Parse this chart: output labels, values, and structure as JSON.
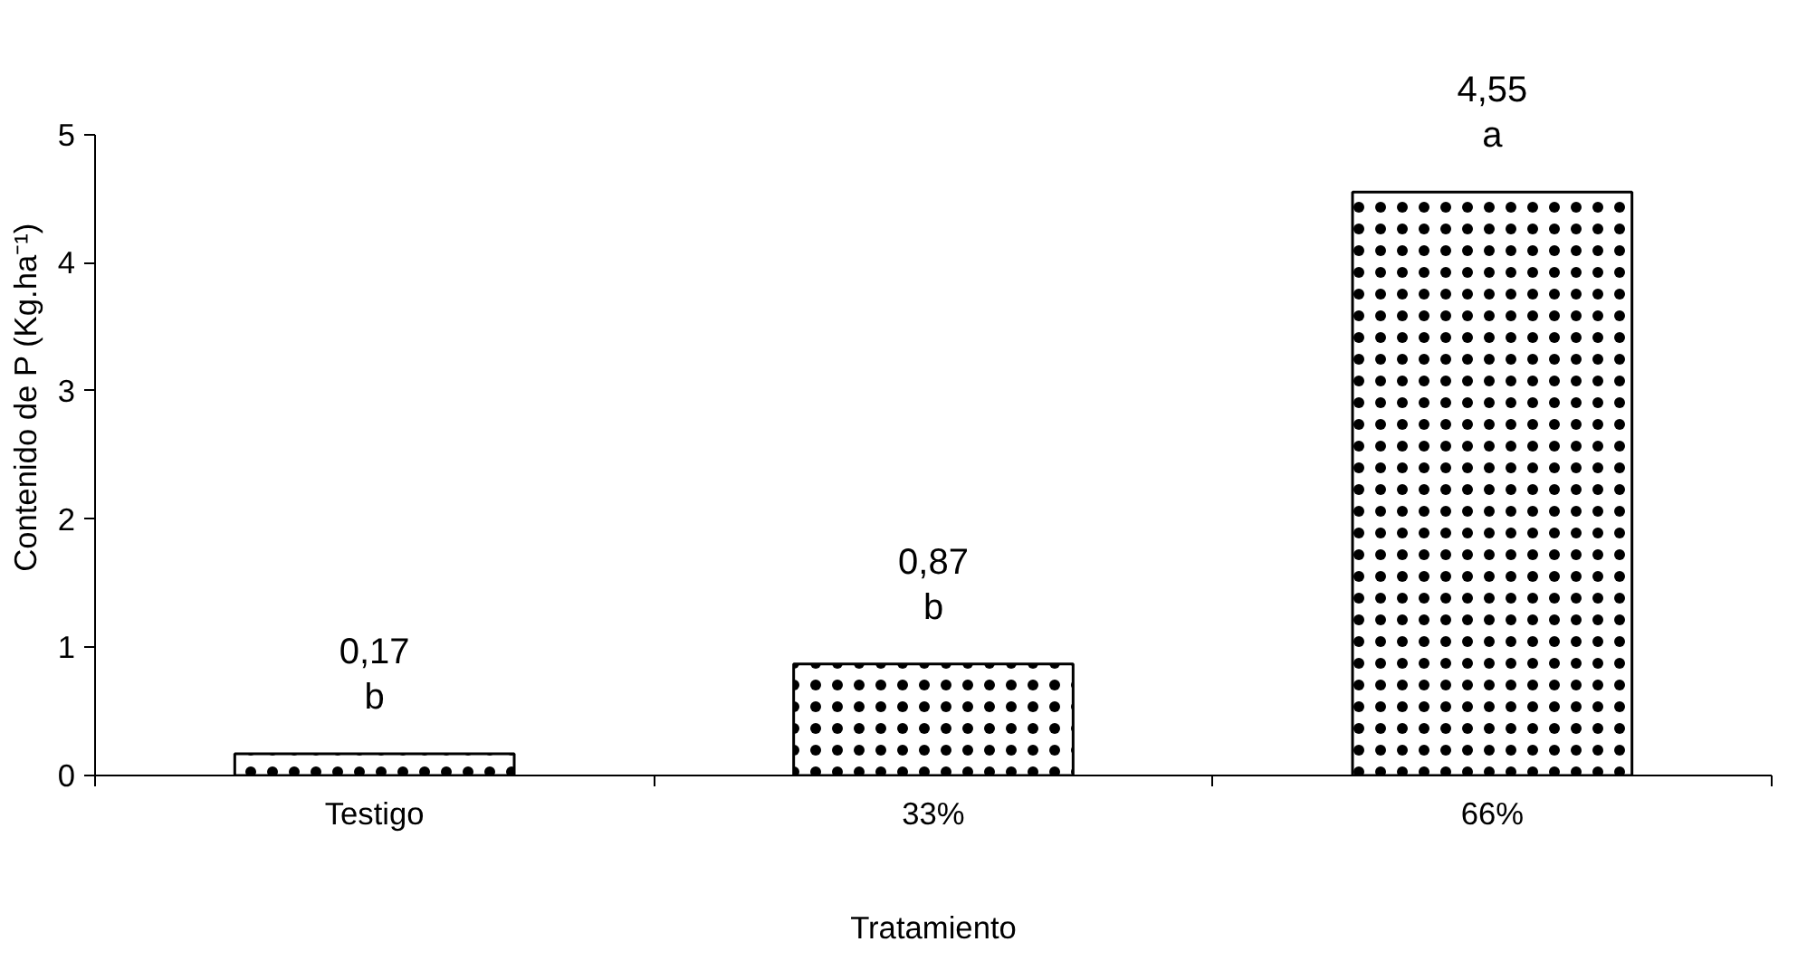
{
  "chart_data": {
    "type": "bar",
    "xlabel": "Tratamiento",
    "ylabel": "Contenido de P (Kg.ha⁻¹)",
    "categories": [
      "Testigo",
      "33%",
      "66%"
    ],
    "values": [
      0.17,
      0.87,
      4.55
    ],
    "value_labels": [
      "0,17",
      "0,87",
      "4,55"
    ],
    "color": "#ffffff",
    "ylim": [
      0,
      5
    ],
    "yticks": [
      0,
      1,
      2,
      3,
      4,
      5
    ],
    "grid": false,
    "annotations": [
      {
        "text": "b",
        "x": "Testigo",
        "y": 0.17
      },
      {
        "text": "b",
        "x": "33%",
        "y": 0.87
      },
      {
        "text": "a",
        "x": "66%",
        "y": 4.55
      }
    ]
  }
}
